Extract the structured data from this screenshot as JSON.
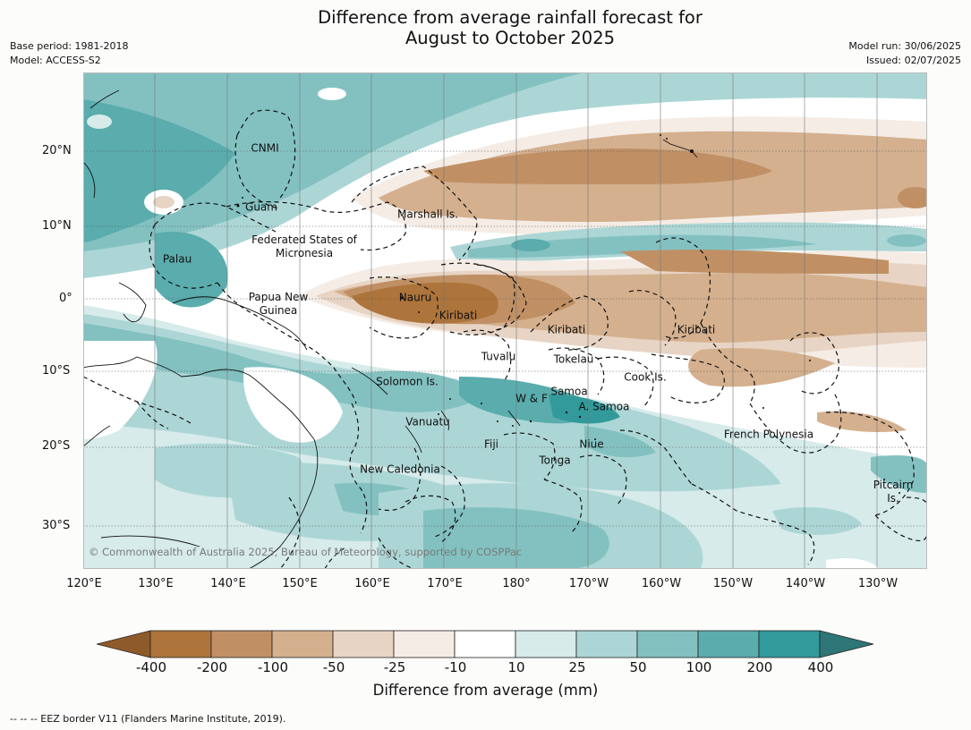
{
  "title": {
    "line1": "Difference from average rainfall forecast for",
    "line2": "August to October 2025"
  },
  "meta_left": {
    "base_period": "Base period: 1981-2018",
    "model": "Model: ACCESS-S2"
  },
  "meta_right": {
    "model_run": "Model run: 30/06/2025",
    "issued": "Issued: 02/07/2025"
  },
  "map": {
    "lat_ticks": [
      "20°N",
      "10°N",
      "0°",
      "10°S",
      "20°S",
      "30°S"
    ],
    "lon_ticks": [
      "120°E",
      "130°E",
      "140°E",
      "150°E",
      "160°E",
      "170°E",
      "180°",
      "170°W",
      "160°W",
      "150°W",
      "140°W",
      "130°W"
    ],
    "place_labels": [
      "CNMI",
      "Guam",
      "Marshall Is.",
      "Federated States of Micronesia",
      "Palau",
      "Papua New Guinea",
      "Nauru",
      "Kiribati",
      "Kiribati",
      "Kiribati",
      "Tuvalu",
      "Tokelau",
      "Cook Is.",
      "Solomon Is.",
      "Samoa",
      "W & F",
      "A. Samoa",
      "Vanuatu",
      "Fiji",
      "Niue",
      "Tonga",
      "French Polynesia",
      "New Caledonia",
      "Pitcairn Is."
    ],
    "copyright": "© Commonwealth of Australia 2025, Bureau of Meteorology, supported by COSPPac"
  },
  "legend": {
    "title": "Difference from average (mm)",
    "ticks": [
      "-400",
      "-200",
      "-100",
      "-50",
      "-25",
      "-10",
      "10",
      "25",
      "50",
      "100",
      "200",
      "400"
    ],
    "colors": [
      "#8f5a2a",
      "#ad743b",
      "#c09064",
      "#d4b08e",
      "#e7d4c4",
      "#f5ece5",
      "#ffffff",
      "#d6ebea",
      "#acd6d5",
      "#83c1c1",
      "#5aacad",
      "#339a9b",
      "#2e7677"
    ]
  },
  "footer": "--  --  -- EEZ border V11 (Flanders Marine Institute, 2019)."
}
